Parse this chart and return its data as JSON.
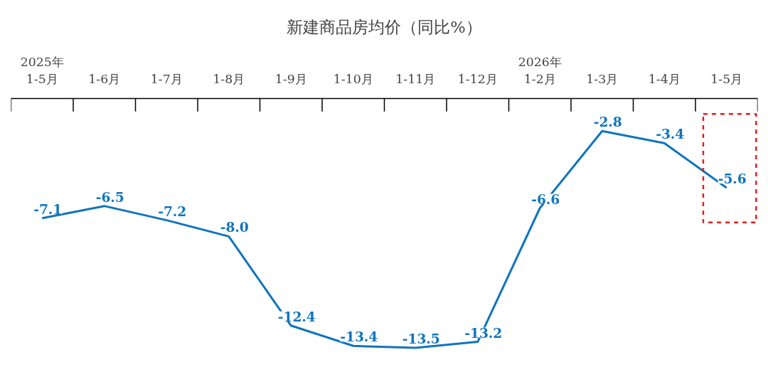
{
  "chart_data": {
    "type": "line",
    "title": "新建商品房均价（同比%）",
    "categories": [
      "2025年\n1-5月",
      "1-6月",
      "1-7月",
      "1-8月",
      "1-9月",
      "1-10月",
      "1-11月",
      "1-12月",
      "2026年\n1-2月",
      "1-3月",
      "1-4月",
      "1-5月"
    ],
    "series": [
      {
        "color": "#0f75bd",
        "values": [
          -7.1,
          -6.5,
          -7.2,
          -8.0,
          -12.4,
          -13.4,
          -13.5,
          -13.2,
          -6.6,
          -2.8,
          -3.4,
          -5.6
        ],
        "value_labels": [
          "-7.1",
          "-6.5",
          "-7.2",
          "-8.0",
          "-12.4",
          "-13.4",
          "-13.5",
          "-13.2",
          "-6.6",
          "-2.8",
          "-3.4",
          "-5.6"
        ]
      }
    ],
    "line_style": "solid"
  }
}
